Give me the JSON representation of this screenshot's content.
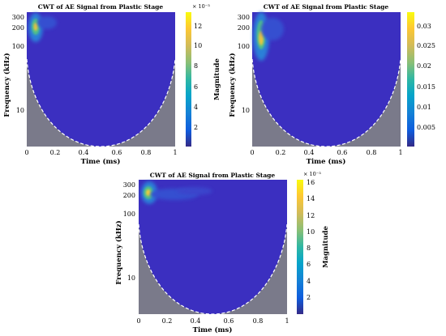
{
  "chart_data": [
    {
      "type": "heatmap",
      "title": "CWT of AE Signal from Plastic Stage",
      "xlabel": "Time (ms)",
      "ylabel": "Frequency (kHz)",
      "x_ticks": [
        "0",
        "0.2",
        "0.4",
        "0.6",
        "0.8",
        "1"
      ],
      "y_ticks": [
        "300",
        "200",
        "100",
        "10"
      ],
      "xlim": [
        0,
        1.05
      ],
      "y_scale": "log",
      "colorbar": {
        "label": "Magnitude",
        "multiplier": "× 10⁻³",
        "ticks": [
          "2",
          "4",
          "6",
          "8",
          "10",
          "12"
        ],
        "range": [
          0,
          13.5
        ]
      },
      "hotspot": {
        "time_ms": 0.05,
        "frequency_khz": 180,
        "magnitude": 12.5
      }
    },
    {
      "type": "heatmap",
      "title": "CWT of AE Signal from Plastic Stage",
      "xlabel": "Time (ms)",
      "ylabel": "Frequency (kHz)",
      "x_ticks": [
        "0",
        "0.2",
        "0.4",
        "0.6",
        "0.8",
        "1"
      ],
      "y_ticks": [
        "300",
        "200",
        "100",
        "10"
      ],
      "xlim": [
        0,
        1.05
      ],
      "y_scale": "log",
      "colorbar": {
        "label": "Magnitude",
        "multiplier": "",
        "ticks": [
          "0.005",
          "0.01",
          "0.015",
          "0.02",
          "0.025",
          "0.03"
        ],
        "range": [
          0,
          0.033
        ]
      },
      "hotspot": {
        "time_ms": 0.05,
        "frequency_khz": 130,
        "magnitude": 0.03
      }
    },
    {
      "type": "heatmap",
      "title": "CWT of AE Signal from Plastic Stage",
      "xlabel": "Time (ms)",
      "ylabel": "Frequency (kHz)",
      "x_ticks": [
        "0",
        "0.2",
        "0.4",
        "0.6",
        "0.8",
        "1"
      ],
      "y_ticks": [
        "300",
        "200",
        "100",
        "10"
      ],
      "xlim": [
        0,
        1.05
      ],
      "y_scale": "log",
      "colorbar": {
        "label": "Magnitude",
        "multiplier": "× 10⁻³",
        "ticks": [
          "2",
          "4",
          "6",
          "8",
          "10",
          "12",
          "14",
          "16"
        ],
        "range": [
          0,
          16.5
        ]
      },
      "hotspot": {
        "time_ms": 0.08,
        "frequency_khz": 230,
        "magnitude": 16
      }
    }
  ]
}
